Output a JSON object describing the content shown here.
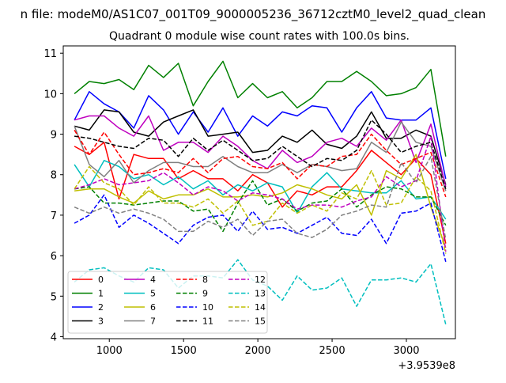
{
  "chart_data": {
    "type": "line",
    "suptitle": "n file: modeM0/AS1C07_001T09_9000005236_36712cztM0_level2_quad_clean",
    "title": "Quadrant 0 module wise count rates with 100.0s bins.",
    "xlabel": "",
    "ylabel": "",
    "x_offset_label": "+3.9539e8",
    "xlim": [
      690,
      3330
    ],
    "ylim": [
      3.95,
      11.18
    ],
    "xticks": [
      1000,
      1500,
      2000,
      2500,
      3000
    ],
    "yticks": [
      4,
      5,
      6,
      7,
      8,
      9,
      10,
      11
    ],
    "x": [
      765,
      865,
      965,
      1065,
      1165,
      1265,
      1365,
      1465,
      1565,
      1665,
      1765,
      1865,
      1965,
      2065,
      2165,
      2265,
      2365,
      2465,
      2565,
      2665,
      2765,
      2865,
      2965,
      3065,
      3165,
      3265
    ],
    "legend": {
      "placement": "lower-left",
      "columns": 4
    },
    "series": [
      {
        "name": "0",
        "color": "#ff0000",
        "dash": "solid",
        "values": [
          8.7,
          8.5,
          8.8,
          7.4,
          8.5,
          8.4,
          8.4,
          7.9,
          8.1,
          7.9,
          7.9,
          7.6,
          8.0,
          7.8,
          7.2,
          7.6,
          7.5,
          7.7,
          7.7,
          8.1,
          8.6,
          8.3,
          8.0,
          8.4,
          8.0,
          6.3
        ]
      },
      {
        "name": "1",
        "color": "#008000",
        "dash": "solid",
        "values": [
          10.0,
          10.3,
          10.25,
          10.35,
          10.1,
          10.7,
          10.4,
          10.75,
          9.7,
          10.3,
          10.8,
          9.9,
          10.25,
          9.9,
          10.05,
          9.65,
          9.9,
          10.3,
          10.3,
          10.55,
          10.3,
          9.95,
          10.0,
          10.15,
          10.6,
          8.45
        ]
      },
      {
        "name": "2",
        "color": "#0000ff",
        "dash": "solid",
        "values": [
          9.35,
          10.05,
          9.75,
          9.55,
          9.15,
          9.95,
          9.6,
          9.0,
          9.55,
          9.05,
          9.65,
          8.95,
          9.45,
          9.2,
          9.55,
          9.45,
          9.7,
          9.65,
          9.05,
          9.65,
          10.05,
          9.4,
          9.35,
          9.35,
          9.65,
          7.9
        ]
      },
      {
        "name": "3",
        "color": "#000000",
        "dash": "solid",
        "values": [
          9.2,
          9.1,
          9.6,
          9.55,
          9.05,
          8.95,
          9.3,
          9.45,
          9.6,
          8.95,
          9.0,
          9.05,
          8.55,
          8.6,
          8.95,
          8.8,
          9.1,
          8.75,
          8.65,
          8.95,
          9.55,
          8.9,
          8.9,
          9.1,
          8.95,
          7.75
        ]
      },
      {
        "name": "4",
        "color": "#bf00bf",
        "dash": "solid",
        "values": [
          9.35,
          9.45,
          9.45,
          9.15,
          8.95,
          9.45,
          8.6,
          8.8,
          8.8,
          8.55,
          8.95,
          8.7,
          8.35,
          8.15,
          8.6,
          8.3,
          8.45,
          8.8,
          8.9,
          8.7,
          9.15,
          8.85,
          9.35,
          8.3,
          9.25,
          7.7
        ]
      },
      {
        "name": "5",
        "color": "#00bfbf",
        "dash": "solid",
        "values": [
          8.25,
          7.7,
          8.35,
          8.2,
          7.9,
          8.0,
          7.75,
          7.95,
          7.65,
          7.85,
          7.5,
          7.75,
          7.6,
          7.8,
          7.7,
          7.05,
          7.7,
          8.05,
          7.65,
          7.6,
          7.55,
          7.55,
          7.85,
          7.4,
          7.45,
          6.9
        ]
      },
      {
        "name": "6",
        "color": "#bfbf00",
        "dash": "solid",
        "values": [
          7.6,
          7.65,
          7.65,
          7.45,
          7.3,
          7.6,
          7.4,
          7.5,
          7.5,
          7.65,
          7.45,
          7.45,
          7.5,
          7.45,
          7.55,
          7.75,
          7.65,
          7.5,
          7.4,
          7.75,
          7.0,
          8.1,
          7.9,
          8.5,
          7.2,
          6.2
        ]
      },
      {
        "name": "7",
        "color": "#808080",
        "dash": "solid",
        "values": [
          9.2,
          8.25,
          7.95,
          8.35,
          7.8,
          8.1,
          8.3,
          8.3,
          8.2,
          8.2,
          8.45,
          8.2,
          8.05,
          8.05,
          8.25,
          8.05,
          8.25,
          8.2,
          8.1,
          8.15,
          8.8,
          8.55,
          9.3,
          8.8,
          8.7,
          7.6
        ]
      },
      {
        "name": "8",
        "color": "#ff0000",
        "dash": "dashed",
        "values": [
          9.1,
          8.5,
          9.05,
          8.5,
          8.0,
          8.05,
          8.15,
          8.05,
          8.4,
          8.05,
          8.4,
          8.45,
          8.2,
          8.15,
          8.3,
          7.9,
          8.25,
          8.2,
          8.45,
          8.5,
          9.0,
          8.6,
          8.25,
          8.4,
          8.55,
          7.45
        ]
      },
      {
        "name": "9",
        "color": "#008000",
        "dash": "dashed",
        "values": [
          7.65,
          7.7,
          7.3,
          7.3,
          7.25,
          7.3,
          7.35,
          7.35,
          7.1,
          7.15,
          6.6,
          7.3,
          7.85,
          7.25,
          7.4,
          7.1,
          7.3,
          7.35,
          7.65,
          7.2,
          7.5,
          7.7,
          7.65,
          7.45,
          7.45,
          6.75
        ]
      },
      {
        "name": "10",
        "color": "#0000ff",
        "dash": "dashed",
        "values": [
          6.8,
          7.0,
          7.5,
          6.7,
          7.0,
          6.8,
          6.55,
          6.3,
          6.75,
          6.95,
          7.0,
          6.6,
          7.1,
          6.65,
          6.7,
          6.55,
          6.75,
          6.95,
          6.55,
          6.5,
          6.9,
          6.3,
          7.05,
          7.1,
          7.3,
          5.85
        ]
      },
      {
        "name": "11",
        "color": "#000000",
        "dash": "dashed",
        "values": [
          8.95,
          8.9,
          8.8,
          8.7,
          8.65,
          8.9,
          8.85,
          8.45,
          8.9,
          8.6,
          8.85,
          8.6,
          8.35,
          8.4,
          8.7,
          8.45,
          8.2,
          8.4,
          8.35,
          8.6,
          9.35,
          9.0,
          8.55,
          8.7,
          8.8,
          7.65
        ]
      },
      {
        "name": "12",
        "color": "#bf00bf",
        "dash": "dashed",
        "values": [
          7.65,
          7.75,
          7.9,
          7.75,
          7.8,
          7.85,
          8.05,
          7.8,
          7.5,
          7.7,
          7.6,
          7.35,
          7.55,
          7.5,
          7.4,
          7.15,
          7.25,
          7.25,
          7.2,
          7.35,
          7.45,
          7.95,
          7.7,
          7.85,
          8.95,
          6.1
        ]
      },
      {
        "name": "13",
        "color": "#00bfbf",
        "dash": "dashed",
        "values": [
          5.35,
          5.65,
          5.7,
          5.5,
          5.35,
          5.7,
          5.65,
          5.2,
          5.5,
          5.5,
          5.45,
          5.9,
          5.4,
          5.25,
          4.9,
          5.5,
          5.15,
          5.2,
          5.45,
          4.75,
          5.4,
          5.4,
          5.45,
          5.35,
          5.8,
          4.3
        ]
      },
      {
        "name": "14",
        "color": "#bfbf00",
        "dash": "dashed",
        "values": [
          7.65,
          8.2,
          7.8,
          7.65,
          7.25,
          7.7,
          7.3,
          7.3,
          7.2,
          7.4,
          7.05,
          7.35,
          6.75,
          6.85,
          7.3,
          7.05,
          7.25,
          7.1,
          7.55,
          7.4,
          8.1,
          7.25,
          7.3,
          7.95,
          7.6,
          6.05
        ]
      },
      {
        "name": "15",
        "color": "#808080",
        "dash": "dashed",
        "values": [
          7.2,
          7.05,
          7.2,
          7.05,
          7.15,
          7.05,
          6.9,
          6.6,
          6.6,
          6.85,
          6.7,
          6.9,
          6.5,
          6.85,
          6.9,
          6.55,
          6.45,
          6.65,
          7.0,
          7.1,
          7.25,
          7.2,
          8.3,
          7.8,
          8.45,
          6.4
        ]
      }
    ]
  }
}
